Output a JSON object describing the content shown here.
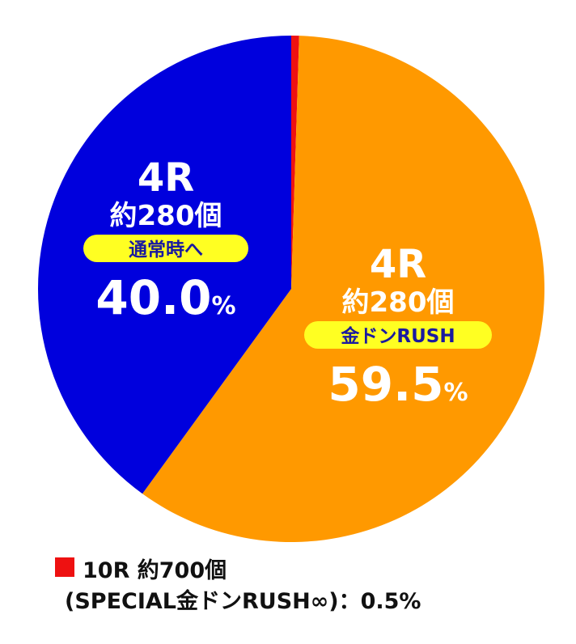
{
  "chart_data": {
    "type": "pie",
    "values": [
      0.5,
      59.5,
      40.0
    ],
    "value_labels": [
      null,
      "59.5%",
      "40.0%"
    ],
    "colors": [
      "#ee1111",
      "#ff9900",
      "#0000dd"
    ],
    "labels": [
      null,
      {
        "round": "4R",
        "count": "約280個",
        "mode": "金ドンRUSH"
      },
      {
        "round": "4R",
        "count": "約280個",
        "mode": "通常時へ"
      }
    ],
    "legend": {
      "line1": "10R 約700個",
      "line2": "(SPECIAL金ドンRUSH∞)：0.5%",
      "color": "#ee1111"
    }
  }
}
